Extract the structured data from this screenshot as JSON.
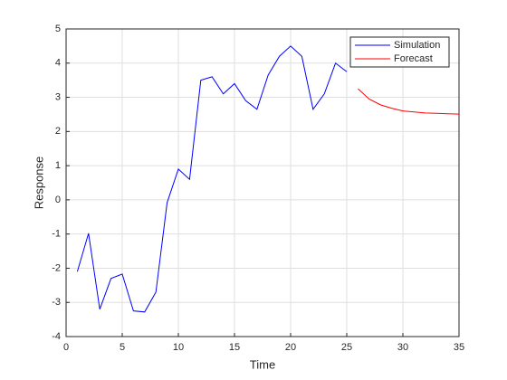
{
  "chart_data": {
    "type": "line",
    "xlabel": "Time",
    "ylabel": "Response",
    "series": [
      {
        "name": "Simulation",
        "color": "#0000ff",
        "x": [
          1,
          2,
          3,
          4,
          5,
          6,
          7,
          8,
          9,
          10,
          11,
          12,
          13,
          14,
          15,
          16,
          17,
          18,
          19,
          20,
          21,
          22,
          23,
          24,
          25
        ],
        "values": [
          -2.1,
          -0.98,
          -3.2,
          -2.3,
          -2.17,
          -3.25,
          -3.28,
          -2.7,
          -0.08,
          0.9,
          0.6,
          3.5,
          3.6,
          3.1,
          3.4,
          2.9,
          2.65,
          3.65,
          4.2,
          4.5,
          4.2,
          2.65,
          3.1,
          4.0,
          3.75
        ]
      },
      {
        "name": "Forecast",
        "color": "#ff0000",
        "x": [
          26,
          27,
          28,
          29,
          30,
          31,
          32,
          33,
          34,
          35
        ],
        "values": [
          3.25,
          2.95,
          2.78,
          2.68,
          2.6,
          2.57,
          2.54,
          2.53,
          2.52,
          2.51
        ]
      }
    ],
    "xlim": [
      0,
      35
    ],
    "xticks": [
      0,
      5,
      10,
      15,
      20,
      25,
      30,
      35
    ],
    "ylim": [
      -4,
      5
    ],
    "yticks": [
      -4,
      -3,
      -2,
      -1,
      0,
      1,
      2,
      3,
      4,
      5
    ],
    "grid": true,
    "legend": "northeast"
  }
}
